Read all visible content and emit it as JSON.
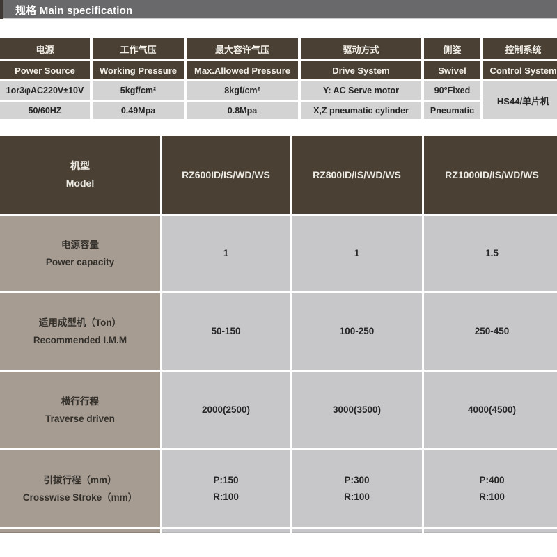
{
  "page": {
    "title": "规格 Main specification"
  },
  "colors": {
    "titlebar_gray": "#69696b",
    "header_brown": "#4a4033",
    "label_taupe": "#a69c92",
    "value_gray_light": "#d3d3d3",
    "value_gray": "#c7c7c9",
    "header_text": "#f2efe9"
  },
  "spec_table": {
    "headers_zh": [
      "电源",
      "工作气压",
      "最大容许气压",
      "驱动方式",
      "侧姿",
      "控制系统"
    ],
    "headers_en": [
      "Power Source",
      "Working Pressure",
      "Max.Allowed Pressure",
      "Drive System",
      "Swivel",
      "Control System"
    ],
    "row1": [
      "1or3φAC220V±10V",
      "5kgf/cm²",
      "8kgf/cm²",
      "Y: AC Serve motor",
      "90°Fixed"
    ],
    "row2": [
      "50/60HZ",
      "0.49Mpa",
      "0.8Mpa",
      "X,Z pneumatic cylinder",
      "Pneumatic"
    ],
    "control_value": "HS44/单片机"
  },
  "model_table": {
    "label_zh": "机型",
    "label_en": "Model",
    "models": [
      "RZ600ID/IS/WD/WS",
      "RZ800ID/IS/WD/WS",
      "RZ1000ID/IS/WD/WS"
    ],
    "rows": [
      {
        "zh": "电源容量",
        "en": "Power capacity",
        "v": [
          "1",
          "1",
          "1.5"
        ]
      },
      {
        "zh": "适用成型机（Ton）",
        "en": "Recommended I.M.M",
        "v": [
          "50-150",
          "100-250",
          "250-450"
        ]
      },
      {
        "zh": "横行行程",
        "en": "Traverse driven",
        "v": [
          "2000(2500)",
          "3000(3500)",
          "4000(4500)"
        ]
      },
      {
        "zh": "引拔行程（mm）",
        "en": "Crosswise Stroke（mm）",
        "v": [
          "P:150\nR:100",
          "P:300\nR:100",
          "P:400\nR:100"
        ]
      }
    ]
  }
}
